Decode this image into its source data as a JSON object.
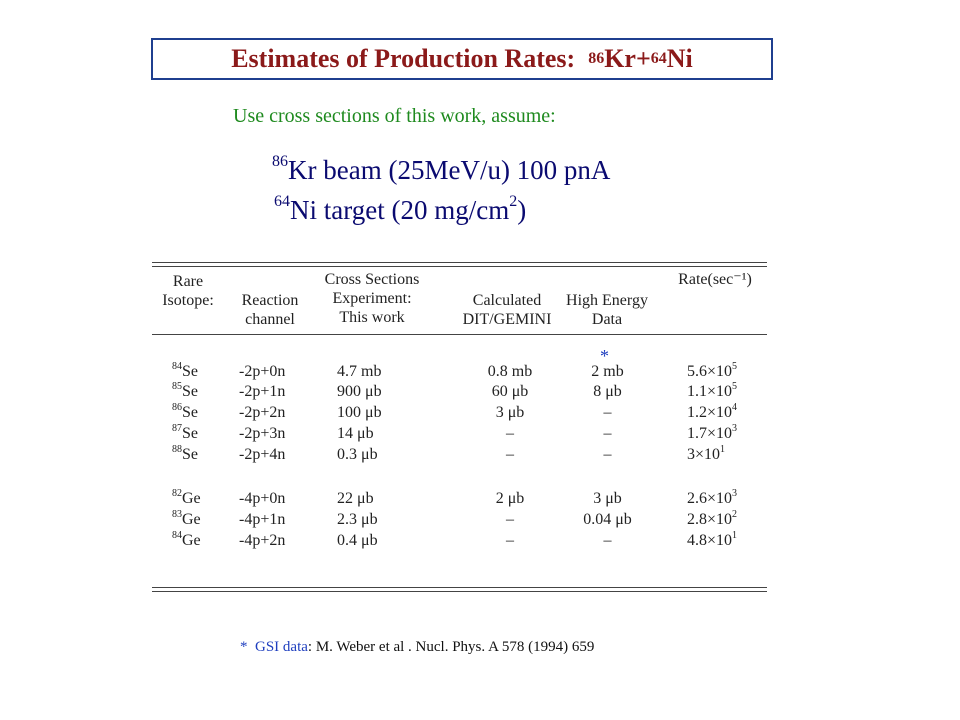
{
  "title": {
    "text": "Estimates of Production Rates:",
    "kr_mass": "86",
    "kr": "Kr+",
    "ni_mass": "64",
    "ni": "Ni"
  },
  "intro": "Use cross sections of this work,  assume:",
  "conditions": {
    "beam_mass": "86",
    "beam_text": "Kr beam (25MeV/u) 100 pnA",
    "target_mass": "64",
    "target_text": "Ni target (20 mg/cm",
    "target_exp": "2",
    "target_close": ")"
  },
  "table": {
    "headers": {
      "isotope": [
        "Rare",
        "Isotope:"
      ],
      "channel": [
        "Reaction",
        "channel"
      ],
      "experiment": [
        "Cross Sections",
        "Experiment:",
        "This work"
      ],
      "calculated": [
        "Calculated",
        "DIT/GEMINI"
      ],
      "high_energy": [
        "High Energy",
        "Data"
      ],
      "rate": "Rate(sec⁻¹)"
    },
    "star": "*",
    "rows": [
      {
        "mass": "84",
        "el": "Se",
        "channel": "-2p+0n",
        "exp": "4.7 mb",
        "calc": "0.8 mb",
        "he": "2 mb",
        "rate_m": "5.6×10",
        "rate_e": "5"
      },
      {
        "mass": "85",
        "el": "Se",
        "channel": "-2p+1n",
        "exp": "900 μb",
        "calc": "60 μb",
        "he": "8 μb",
        "rate_m": "1.1×10",
        "rate_e": "5"
      },
      {
        "mass": "86",
        "el": "Se",
        "channel": "-2p+2n",
        "exp": "100 μb",
        "calc": "3 μb",
        "he": "–",
        "rate_m": "1.2×10",
        "rate_e": "4"
      },
      {
        "mass": "87",
        "el": "Se",
        "channel": "-2p+3n",
        "exp": "14 μb",
        "calc": "–",
        "he": "–",
        "rate_m": "1.7×10",
        "rate_e": "3"
      },
      {
        "mass": "88",
        "el": "Se",
        "channel": "-2p+4n",
        "exp": "0.3 μb",
        "calc": "–",
        "he": "–",
        "rate_m": "3×10",
        "rate_e": "1"
      },
      {
        "mass": "82",
        "el": "Ge",
        "channel": "-4p+0n",
        "exp": "22 μb",
        "calc": "2 μb",
        "he": "3 μb",
        "rate_m": "2.6×10",
        "rate_e": "3"
      },
      {
        "mass": "83",
        "el": "Ge",
        "channel": "-4p+1n",
        "exp": "2.3 μb",
        "calc": "–",
        "he": "0.04 μb",
        "rate_m": "2.8×10",
        "rate_e": "2"
      },
      {
        "mass": "84",
        "el": "Ge",
        "channel": "-4p+2n",
        "exp": "0.4 μb",
        "calc": "–",
        "he": "–",
        "rate_m": "4.8×10",
        "rate_e": "1"
      }
    ]
  },
  "footnote": {
    "star": "*",
    "source": "GSI data",
    "ref": ":  M. Weber et al .  Nucl. Phys. A 578 (1994)  659"
  }
}
